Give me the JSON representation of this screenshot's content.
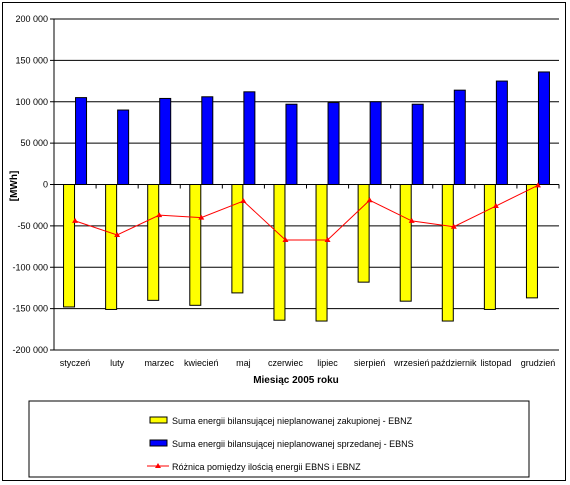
{
  "chart_data": {
    "type": "bar",
    "xlabel": "Miesiąc 2005 roku",
    "ylabel": "[MWh]",
    "ylim": [
      -200000,
      200000
    ],
    "yticks": [
      200000,
      150000,
      100000,
      50000,
      0,
      -50000,
      -100000,
      -150000,
      -200000
    ],
    "ytick_labels": [
      "200 000",
      "150 000",
      "100 000",
      "50 000",
      "0",
      "-50 000",
      "-100 000",
      "-150 000",
      "-200 000"
    ],
    "grid": true,
    "legend_position": "bottom",
    "categories": [
      "styczeń",
      "luty",
      "marzec",
      "kwiecień",
      "maj",
      "czerwiec",
      "lipiec",
      "sierpień",
      "wrzesień",
      "październik",
      "listopad",
      "grudzień"
    ],
    "series": [
      {
        "name": "Suma energii bilansującej nieplanowanej zakupionej  - EBNZ",
        "type": "bar",
        "color": "#ffff00",
        "values": [
          -148000,
          -151000,
          -140000,
          -146000,
          -131000,
          -164000,
          -165000,
          -118000,
          -141000,
          -165000,
          -151000,
          -137000
        ]
      },
      {
        "name": "Suma energii bilansującej nieplanowanej sprzedanej  - EBNS",
        "type": "bar",
        "color": "#0000ff",
        "values": [
          105000,
          90000,
          104000,
          106000,
          112000,
          97000,
          99000,
          100000,
          97000,
          114000,
          125000,
          136000
        ]
      },
      {
        "name": "Różnica pomiędzy ilością energii EBNS i EBNZ",
        "type": "line",
        "color": "#ff0000",
        "values": [
          -44000,
          -61000,
          -37000,
          -40000,
          -20000,
          -67000,
          -67000,
          -19000,
          -44000,
          -51000,
          -26000,
          -1000
        ]
      }
    ]
  }
}
